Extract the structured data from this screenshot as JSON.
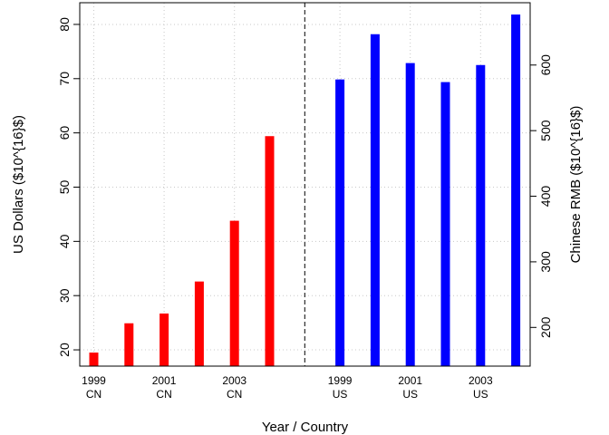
{
  "chart_data": {
    "type": "bar",
    "xlabel": "Year / Country",
    "ylabel_left": "US Dollars ($10^{16}$)",
    "ylabel_right": "Chinese RMB ($10^{16}$)",
    "grid": true,
    "left_axis": {
      "ylim": [
        17,
        84
      ],
      "ticks": [
        20,
        30,
        40,
        50,
        60,
        70,
        80
      ]
    },
    "right_axis": {
      "ylim": [
        141,
        695
      ],
      "ticks": [
        200,
        300,
        400,
        500,
        600
      ]
    },
    "series": [
      {
        "name": "CN",
        "color": "#ff0000",
        "axis": "left",
        "x": [
          1999,
          2000,
          2001,
          2002,
          2003,
          2004
        ],
        "values": [
          19.5,
          24.9,
          26.7,
          32.6,
          43.8,
          59.4
        ]
      },
      {
        "name": "US",
        "color": "#0000ff",
        "axis": "right",
        "x": [
          1999,
          2000,
          2001,
          2002,
          2003,
          2004
        ],
        "values": [
          578,
          647,
          603,
          574,
          600,
          677
        ]
      }
    ],
    "category_labels": [
      {
        "year": "1999",
        "country": "CN"
      },
      {
        "year": "2001",
        "country": "CN"
      },
      {
        "year": "2003",
        "country": "CN"
      },
      {
        "year": "1999",
        "country": "US"
      },
      {
        "year": "2001",
        "country": "US"
      },
      {
        "year": "2003",
        "country": "US"
      }
    ]
  }
}
